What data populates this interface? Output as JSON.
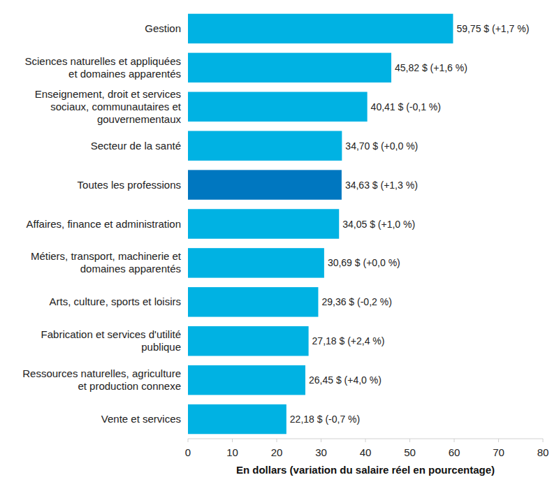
{
  "chart_data": {
    "type": "bar",
    "orientation": "horizontal",
    "categories": [
      "Gestion",
      "Sciences naturelles et appliquées et domaines apparentés",
      "Enseignement, droit et services sociaux, communautaires et gouvernementaux",
      "Secteur de la santé",
      "Toutes les professions",
      "Affaires, finance et administration",
      "Métiers, transport, machinerie et domaines apparentés",
      "Arts, culture, sports et loisirs",
      "Fabrication et services d'utilité publique",
      "Ressources naturelles, agriculture et production connexe",
      "Vente et services"
    ],
    "values": [
      59.75,
      45.82,
      40.41,
      34.7,
      34.63,
      34.05,
      30.69,
      29.36,
      27.18,
      26.45,
      22.18
    ],
    "value_labels": [
      "59,75 $ (+1,7 %)",
      "45,82 $ (+1,6 %)",
      "40,41 $ (-0,1 %)",
      "34,70 $ (+0,0 %)",
      "34,63 $ (+1,3 %)",
      "34,05 $ (+1,0 %)",
      "30,69 $ (+0,0 %)",
      "29,36 $ (-0,2 %)",
      "27,18 $ (+2,4 %)",
      "26,45 $ (+4,0 %)",
      "22,18 $ (-0,7 %)"
    ],
    "colors": [
      "#00b2e3",
      "#00b2e3",
      "#00b2e3",
      "#00b2e3",
      "#0077c0",
      "#00b2e3",
      "#00b2e3",
      "#00b2e3",
      "#00b2e3",
      "#00b2e3",
      "#00b2e3"
    ],
    "x_label": "En dollars (variation du salaire réel en pourcentage)",
    "xlim": [
      0,
      80
    ],
    "xticks": [
      0,
      10,
      20,
      30,
      40,
      50,
      60,
      70,
      80
    ],
    "grid": false,
    "data_labels": true
  }
}
